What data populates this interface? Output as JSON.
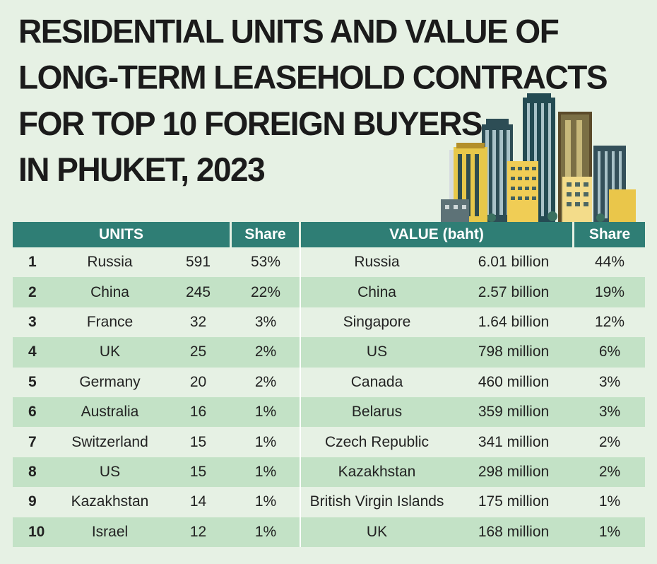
{
  "title_lines": [
    "RESIDENTIAL UNITS AND VALUE OF",
    "LONG-TERM LEASEHOLD CONTRACTS",
    "FOR TOP 10 FOREIGN BUYERS",
    "IN PHUKET, 2023"
  ],
  "colors": {
    "header_bg": "#2f7e75",
    "row_stripe": "#c3e2c6",
    "background": "#e6f1e4"
  },
  "illustration": "city-skyline-icon",
  "chart_data": {
    "type": "table",
    "columns": [
      "UNITS",
      "Share",
      "VALUE (baht)",
      "Share"
    ],
    "rows": [
      {
        "rank": "1",
        "units_country": "Russia",
        "units": "591",
        "units_share": "53%",
        "value_country": "Russia",
        "value": "6.01 billion",
        "value_share": "44%"
      },
      {
        "rank": "2",
        "units_country": "China",
        "units": "245",
        "units_share": "22%",
        "value_country": "China",
        "value": "2.57 billion",
        "value_share": "19%"
      },
      {
        "rank": "3",
        "units_country": "France",
        "units": "32",
        "units_share": "3%",
        "value_country": "Singapore",
        "value": "1.64 billion",
        "value_share": "12%"
      },
      {
        "rank": "4",
        "units_country": "UK",
        "units": "25",
        "units_share": "2%",
        "value_country": "US",
        "value": "798 million",
        "value_share": "6%"
      },
      {
        "rank": "5",
        "units_country": "Germany",
        "units": "20",
        "units_share": "2%",
        "value_country": "Canada",
        "value": "460 million",
        "value_share": "3%"
      },
      {
        "rank": "6",
        "units_country": "Australia",
        "units": "16",
        "units_share": "1%",
        "value_country": "Belarus",
        "value": "359 million",
        "value_share": "3%"
      },
      {
        "rank": "7",
        "units_country": "Switzerland",
        "units": "15",
        "units_share": "1%",
        "value_country": "Czech Republic",
        "value": "341 million",
        "value_share": "2%"
      },
      {
        "rank": "8",
        "units_country": "US",
        "units": "15",
        "units_share": "1%",
        "value_country": "Kazakhstan",
        "value": "298 million",
        "value_share": "2%"
      },
      {
        "rank": "9",
        "units_country": "Kazakhstan",
        "units": "14",
        "units_share": "1%",
        "value_country": "British Virgin Islands",
        "value": "175 million",
        "value_share": "1%"
      },
      {
        "rank": "10",
        "units_country": "Israel",
        "units": "12",
        "units_share": "1%",
        "value_country": "UK",
        "value": "168 million",
        "value_share": "1%"
      }
    ]
  }
}
